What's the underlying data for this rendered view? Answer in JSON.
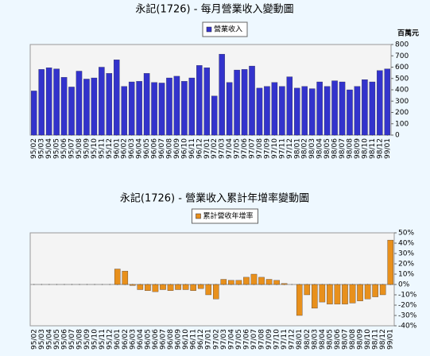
{
  "chart_data": [
    {
      "type": "bar",
      "title": "永記(1726) - 每月營業收入變動圖",
      "y_label": "百萬元",
      "categories": [
        "95/02",
        "95/03",
        "95/04",
        "95/05",
        "95/06",
        "95/07",
        "95/08",
        "95/09",
        "95/10",
        "95/11",
        "95/12",
        "96/01",
        "96/02",
        "96/03",
        "96/04",
        "96/05",
        "96/06",
        "96/07",
        "96/08",
        "96/09",
        "96/10",
        "96/11",
        "96/12",
        "97/01",
        "97/02",
        "97/03",
        "97/04",
        "97/05",
        "97/06",
        "97/07",
        "97/08",
        "97/09",
        "97/10",
        "97/11",
        "97/12",
        "98/01",
        "98/02",
        "98/03",
        "98/04",
        "98/05",
        "98/06",
        "98/07",
        "98/08",
        "98/09",
        "98/10",
        "98/11",
        "98/12",
        "99/01"
      ],
      "series": [
        {
          "name": "營業收入",
          "color": "#3333cc",
          "values": [
            390,
            580,
            595,
            585,
            510,
            425,
            565,
            495,
            505,
            600,
            545,
            665,
            430,
            470,
            475,
            545,
            465,
            460,
            505,
            520,
            475,
            505,
            615,
            595,
            345,
            715,
            465,
            575,
            580,
            610,
            415,
            430,
            465,
            430,
            515,
            415,
            430,
            410,
            470,
            430,
            480,
            470,
            400,
            430,
            490,
            470,
            570,
            585
          ]
        }
      ],
      "ylim": [
        0,
        800
      ],
      "yticks": [
        0,
        100,
        200,
        300,
        400,
        500,
        600,
        700,
        800
      ],
      "grid": false,
      "legend": "top"
    },
    {
      "type": "bar",
      "title": "永記(1726) -  營業收入累計年增率變動圖",
      "categories": [
        "95/02",
        "95/03",
        "95/04",
        "95/05",
        "95/06",
        "95/07",
        "95/08",
        "95/09",
        "95/10",
        "95/11",
        "95/12",
        "96/01",
        "96/02",
        "96/03",
        "96/04",
        "96/05",
        "96/06",
        "96/07",
        "96/08",
        "96/09",
        "96/10",
        "96/11",
        "96/12",
        "97/01",
        "97/02",
        "97/03",
        "97/04",
        "97/05",
        "97/06",
        "97/07",
        "97/08",
        "97/09",
        "97/10",
        "97/11",
        "97/12",
        "98/01",
        "98/02",
        "98/03",
        "98/04",
        "98/05",
        "98/06",
        "98/07",
        "98/08",
        "98/09",
        "98/10",
        "98/11",
        "98/12",
        "99/01"
      ],
      "series": [
        {
          "name": "累計營收年增率",
          "color": "#e8901c",
          "values": [
            0,
            0,
            0,
            0,
            0,
            0,
            0,
            0,
            0,
            0,
            0,
            15,
            13,
            -1,
            -5,
            -6,
            -7,
            -5,
            -6,
            -5,
            -5,
            -6,
            -4,
            -10,
            -14,
            5,
            4,
            4,
            7,
            10,
            7,
            5,
            4,
            1,
            0,
            -30,
            -10,
            -23,
            -17,
            -19,
            -19,
            -19,
            -18,
            -16,
            -14,
            -12,
            -10,
            43
          ]
        }
      ],
      "ylim": [
        -40,
        50
      ],
      "yticks": [
        {
          "value": -40,
          "label": "-40%"
        },
        {
          "value": -30,
          "label": "-30%"
        },
        {
          "value": -20,
          "label": "-20%"
        },
        {
          "value": -10,
          "label": "-10%"
        },
        {
          "value": 0,
          "label": "0%"
        },
        {
          "value": 10,
          "label": "10%"
        },
        {
          "value": 20,
          "label": "20%"
        },
        {
          "value": 30,
          "label": "30%"
        },
        {
          "value": 40,
          "label": "40%"
        },
        {
          "value": 50,
          "label": "50%"
        }
      ],
      "grid": false,
      "legend": "top"
    }
  ]
}
